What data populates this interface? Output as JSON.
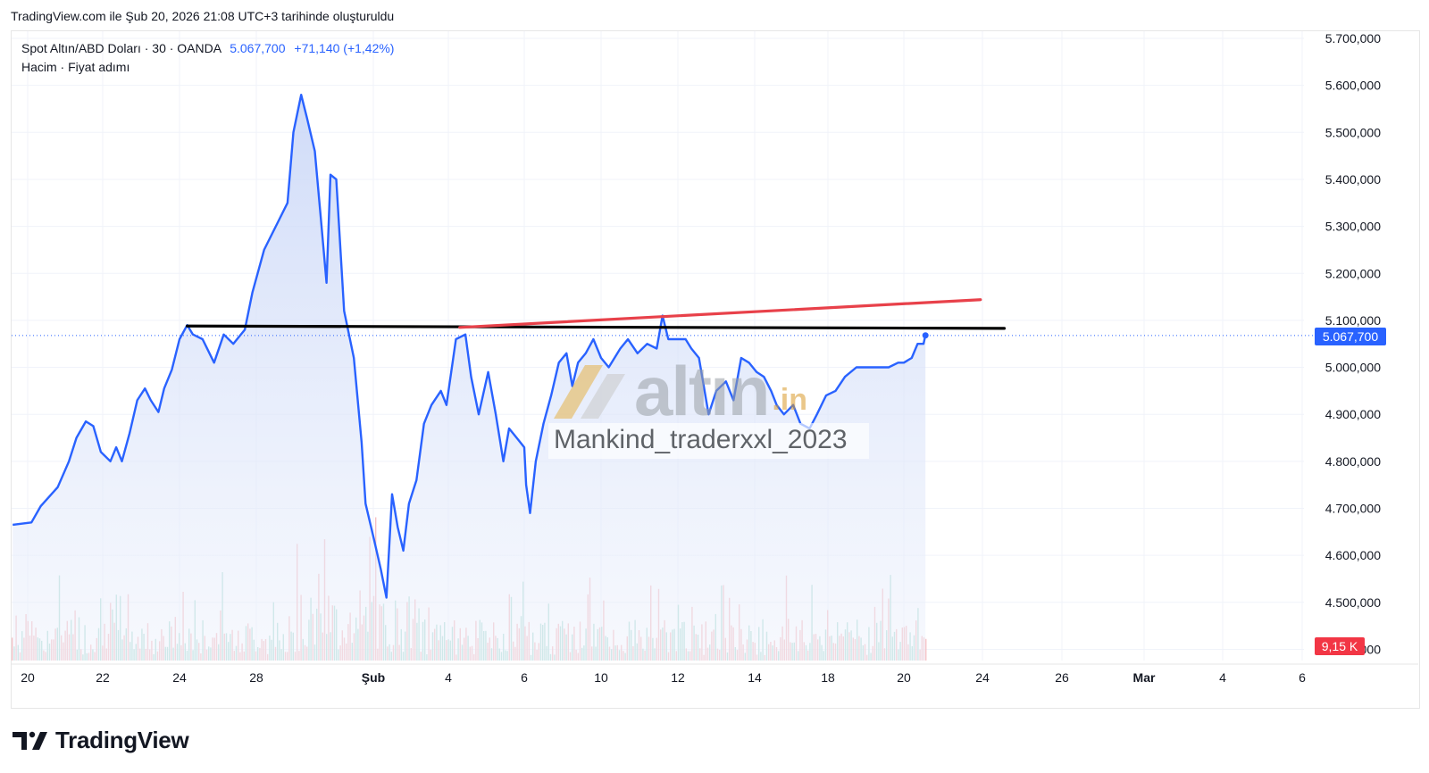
{
  "header": {
    "created_text": "TradingView.com ile Şub 20, 2026 21:08 UTC+3 tarihinde oluşturuldu"
  },
  "legend": {
    "symbol": "Spot Altın/ABD Doları · 30 · OANDA",
    "price": "5.067,700",
    "change": "+71,140 (+1,42%)",
    "indicators": "Hacim · Fiyat adımı"
  },
  "price_tag": "5.067,700",
  "volume_tag": "9,15 K",
  "watermark": {
    "brand": "altın",
    "suffix": ".in",
    "user": "Mankind_traderxxl_2023"
  },
  "footer": {
    "logo_text": "TradingView"
  },
  "colors": {
    "line": "#2962ff",
    "fill": "#dbe4fb",
    "support": "#000000",
    "resistance": "#e8414a",
    "vol_up": "#a6d9cf",
    "vol_down": "#f4b5b8"
  },
  "chart_data": {
    "type": "area",
    "title": "Spot Altın/ABD Doları · 30 · OANDA",
    "xlabel": "",
    "ylabel": "",
    "x_ticks": [
      {
        "label": "20",
        "t": 0
      },
      {
        "label": "22",
        "t": 2
      },
      {
        "label": "24",
        "t": 4
      },
      {
        "label": "28",
        "t": 6
      },
      {
        "label": "Şub",
        "t": 9
      },
      {
        "label": "4",
        "t": 11
      },
      {
        "label": "6",
        "t": 13
      },
      {
        "label": "10",
        "t": 15
      },
      {
        "label": "12",
        "t": 17
      },
      {
        "label": "14",
        "t": 19
      },
      {
        "label": "18",
        "t": 21
      },
      {
        "label": "20",
        "t": 23
      },
      {
        "label": "24",
        "t": 25
      },
      {
        "label": "26",
        "t": 27
      },
      {
        "label": "Mar",
        "t": 29
      },
      {
        "label": "4",
        "t": 31
      },
      {
        "label": "6",
        "t": 33
      }
    ],
    "y_ticks": [
      "5.700,000",
      "5.600,000",
      "5.500,000",
      "5.400,000",
      "5.300,000",
      "5.200,000",
      "5.100,000",
      "5.000,000",
      "4.900,000",
      "4.800,000",
      "4.700,000",
      "4.600,000",
      "4.500,000",
      "4.400,000"
    ],
    "ylim": [
      4380,
      5750
    ],
    "xlim": [
      -0.25,
      33.9
    ],
    "grid": true,
    "series": [
      {
        "values": [
          [
            -0.4,
            4665
          ],
          [
            0.1,
            4670
          ],
          [
            0.35,
            4705
          ],
          [
            0.8,
            4745
          ],
          [
            1.1,
            4800
          ],
          [
            1.3,
            4850
          ],
          [
            1.55,
            4885
          ],
          [
            1.75,
            4875
          ],
          [
            1.95,
            4820
          ],
          [
            2.2,
            4800
          ],
          [
            2.35,
            4830
          ],
          [
            2.5,
            4800
          ],
          [
            2.7,
            4860
          ],
          [
            2.9,
            4930
          ],
          [
            3.1,
            4955
          ],
          [
            3.25,
            4930
          ],
          [
            3.45,
            4905
          ],
          [
            3.6,
            4955
          ],
          [
            3.8,
            4995
          ],
          [
            4.0,
            5060
          ],
          [
            4.2,
            5090
          ],
          [
            4.35,
            5070
          ],
          [
            4.6,
            5060
          ],
          [
            4.9,
            5010
          ],
          [
            5.15,
            5070
          ],
          [
            5.4,
            5050
          ],
          [
            5.7,
            5080
          ],
          [
            5.9,
            5160
          ],
          [
            6.2,
            5250
          ],
          [
            6.5,
            5300
          ],
          [
            6.8,
            5350
          ],
          [
            6.95,
            5500
          ],
          [
            7.15,
            5580
          ],
          [
            7.3,
            5530
          ],
          [
            7.5,
            5460
          ],
          [
            7.65,
            5320
          ],
          [
            7.8,
            5180
          ],
          [
            7.9,
            5410
          ],
          [
            8.05,
            5400
          ],
          [
            8.25,
            5120
          ],
          [
            8.5,
            5020
          ],
          [
            8.7,
            4840
          ],
          [
            8.8,
            4710
          ],
          [
            9.0,
            4640
          ],
          [
            9.2,
            4570
          ],
          [
            9.35,
            4510
          ],
          [
            9.5,
            4730
          ],
          [
            9.65,
            4660
          ],
          [
            9.8,
            4610
          ],
          [
            9.95,
            4710
          ],
          [
            10.15,
            4760
          ],
          [
            10.35,
            4880
          ],
          [
            10.55,
            4920
          ],
          [
            10.8,
            4950
          ],
          [
            10.95,
            4920
          ],
          [
            11.2,
            5060
          ],
          [
            11.45,
            5070
          ],
          [
            11.6,
            4980
          ],
          [
            11.8,
            4900
          ],
          [
            12.05,
            4990
          ],
          [
            12.25,
            4900
          ],
          [
            12.45,
            4800
          ],
          [
            12.6,
            4870
          ],
          [
            12.8,
            4850
          ],
          [
            13.0,
            4830
          ],
          [
            13.05,
            4750
          ],
          [
            13.15,
            4690
          ],
          [
            13.3,
            4800
          ],
          [
            13.5,
            4880
          ],
          [
            13.7,
            4940
          ],
          [
            13.9,
            5010
          ],
          [
            14.1,
            5030
          ],
          [
            14.25,
            4960
          ],
          [
            14.4,
            5010
          ],
          [
            14.6,
            5030
          ],
          [
            14.8,
            5060
          ],
          [
            15.0,
            5020
          ],
          [
            15.2,
            5000
          ],
          [
            15.5,
            5040
          ],
          [
            15.7,
            5060
          ],
          [
            15.95,
            5030
          ],
          [
            16.2,
            5050
          ],
          [
            16.45,
            5040
          ],
          [
            16.6,
            5110
          ],
          [
            16.75,
            5060
          ],
          [
            17.0,
            5060
          ],
          [
            17.2,
            5060
          ],
          [
            17.35,
            5040
          ],
          [
            17.55,
            5020
          ],
          [
            17.8,
            4900
          ],
          [
            18.0,
            4950
          ],
          [
            18.25,
            4970
          ],
          [
            18.45,
            4930
          ],
          [
            18.65,
            5020
          ],
          [
            18.85,
            5010
          ],
          [
            19.05,
            4990
          ],
          [
            19.25,
            4980
          ],
          [
            19.45,
            4950
          ],
          [
            19.6,
            4920
          ],
          [
            19.8,
            4900
          ],
          [
            20.05,
            4920
          ],
          [
            20.25,
            4880
          ],
          [
            20.5,
            4870
          ],
          [
            20.7,
            4900
          ],
          [
            20.95,
            4940
          ],
          [
            21.2,
            4950
          ],
          [
            21.45,
            4980
          ],
          [
            21.75,
            5000
          ],
          [
            22.05,
            5000
          ],
          [
            22.35,
            5000
          ],
          [
            22.6,
            5000
          ],
          [
            22.85,
            5010
          ],
          [
            23.0,
            5010
          ],
          [
            23.2,
            5020
          ],
          [
            23.35,
            5050
          ],
          [
            23.5,
            5050
          ],
          [
            23.55,
            5068
          ]
        ]
      }
    ],
    "support_line": {
      "from": [
        4.2,
        5088
      ],
      "to": [
        25.55,
        5083
      ]
    },
    "resistance_line": {
      "from": [
        11.3,
        5085
      ],
      "to": [
        24.95,
        5144
      ]
    },
    "last_value": 5067.7,
    "volume": {
      "last_label": "9,15 K"
    }
  }
}
